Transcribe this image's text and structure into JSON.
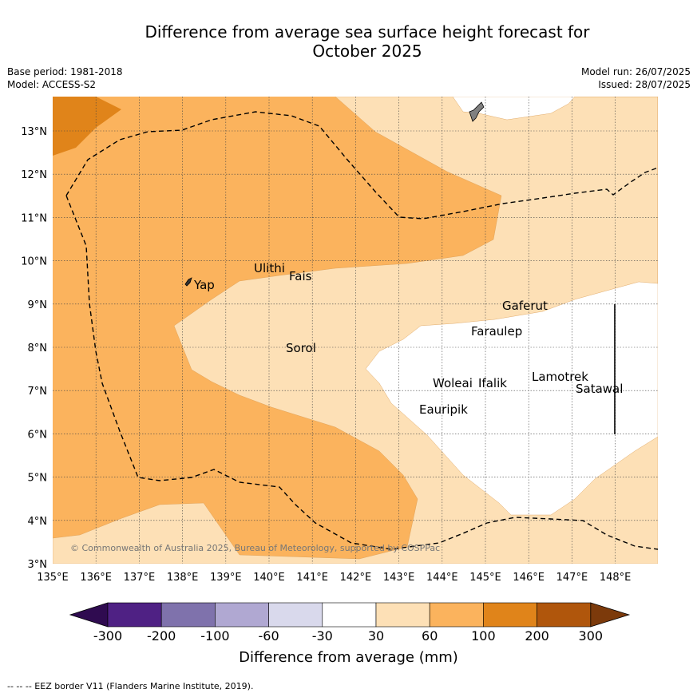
{
  "title_line1": "Difference from average sea surface height forecast for",
  "title_line2": "October 2025",
  "meta": {
    "base_period": "Base period: 1981-2018",
    "model": "Model: ACCESS-S2",
    "model_run": "Model run: 26/07/2025",
    "issued": "Issued: 28/07/2025"
  },
  "map": {
    "lon_ticks": [
      "135°E",
      "136°E",
      "137°E",
      "138°E",
      "139°E",
      "140°E",
      "141°E",
      "142°E",
      "143°E",
      "144°E",
      "145°E",
      "146°E",
      "147°E",
      "148°E"
    ],
    "lat_ticks": [
      "3°N",
      "4°N",
      "5°N",
      "6°N",
      "7°N",
      "8°N",
      "9°N",
      "10°N",
      "11°N",
      "12°N",
      "13°N"
    ],
    "places": [
      {
        "name": "Ulithi"
      },
      {
        "name": "Fais"
      },
      {
        "name": "Yap"
      },
      {
        "name": "Gaferut"
      },
      {
        "name": "Faraulep"
      },
      {
        "name": "Sorol"
      },
      {
        "name": "Woleai"
      },
      {
        "name": "Ifalik"
      },
      {
        "name": "Lamotrek"
      },
      {
        "name": "Satawal"
      },
      {
        "name": "Eauripik"
      }
    ],
    "copyright": "© Commonwealth of Australia 2025, Bureau of Meteorology, supported by COSPPac",
    "colors": {
      "band_60_100": "#fbb35d",
      "band_30_60": "#fde0b6",
      "band_100_200": "#e0841a",
      "neutral": "#ffffff",
      "land": "#808080"
    }
  },
  "colorbar": {
    "title": "Difference from average (mm)",
    "labels": [
      "-300",
      "-200",
      "-100",
      "-60",
      "-30",
      "30",
      "60",
      "100",
      "200",
      "300"
    ],
    "colors": [
      "#4f2184",
      "#7f72ac",
      "#b0a8d2",
      "#d9d9ec",
      "#ffffff",
      "#fde0b6",
      "#fbb35d",
      "#e0841a",
      "#b0560c"
    ],
    "under_color": "#2f0b50",
    "over_color": "#7c3a0b"
  },
  "footer": "--  --  -- EEZ border V11 (Flanders Marine Institute, 2019)."
}
